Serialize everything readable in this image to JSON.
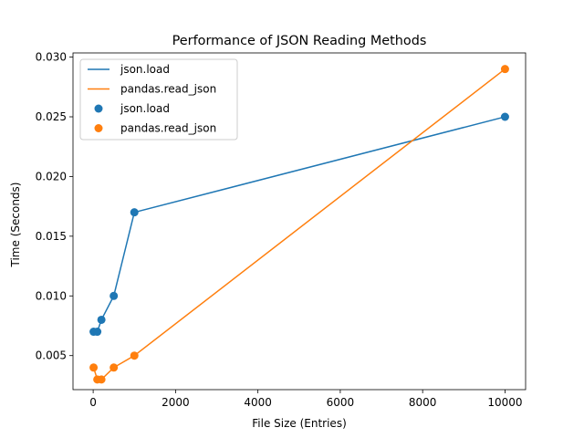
{
  "chart_data": {
    "type": "line",
    "title": "Performance of JSON Reading Methods",
    "xlabel": "File Size (Entries)",
    "ylabel": "Time (Seconds)",
    "x": [
      10,
      100,
      200,
      500,
      1000,
      10000
    ],
    "series": [
      {
        "name": "json.load",
        "values": [
          0.007,
          0.007,
          0.008,
          0.01,
          0.017,
          0.025
        ],
        "color": "#1f77b4"
      },
      {
        "name": "pandas.read_json",
        "values": [
          0.004,
          0.003,
          0.003,
          0.004,
          0.005,
          0.029
        ],
        "color": "#ff7f0e"
      }
    ],
    "xlim": [
      -490,
      10500
    ],
    "ylim": [
      0.00215,
      0.03035
    ],
    "xticks": [
      0,
      2000,
      4000,
      6000,
      8000,
      10000
    ],
    "xtick_labels": [
      "0",
      "2000",
      "4000",
      "6000",
      "8000",
      "10000"
    ],
    "yticks": [
      0.005,
      0.01,
      0.015,
      0.02,
      0.025,
      0.03
    ],
    "ytick_labels": [
      "0.005",
      "0.010",
      "0.015",
      "0.020",
      "0.025",
      "0.030"
    ],
    "legend": {
      "placement": "top-left",
      "entries": [
        {
          "label": "json.load",
          "kind": "line",
          "color": "#1f77b4"
        },
        {
          "label": "pandas.read_json",
          "kind": "line",
          "color": "#ff7f0e"
        },
        {
          "label": "json.load",
          "kind": "marker",
          "color": "#1f77b4"
        },
        {
          "label": "pandas.read_json",
          "kind": "marker",
          "color": "#ff7f0e"
        }
      ]
    },
    "grid": false
  }
}
